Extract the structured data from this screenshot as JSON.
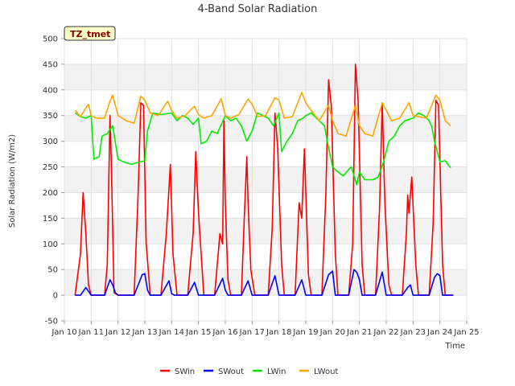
{
  "chart_data": {
    "type": "line",
    "title": "4-Band Solar Radiation",
    "xlabel": "Time",
    "ylabel": "Solar Radiation (W/m2)",
    "badge": "TZ_tmet",
    "xlim": [
      10,
      25
    ],
    "ylim": [
      -50,
      500
    ],
    "xticks": [
      {
        "v": 10,
        "label": "Jan 10"
      },
      {
        "v": 11,
        "label": "Jan 11"
      },
      {
        "v": 12,
        "label": "Jan 12"
      },
      {
        "v": 13,
        "label": "Jan 13"
      },
      {
        "v": 14,
        "label": "Jan 14"
      },
      {
        "v": 15,
        "label": "Jan 15"
      },
      {
        "v": 16,
        "label": "Jan 16"
      },
      {
        "v": 17,
        "label": "Jan 17"
      },
      {
        "v": 18,
        "label": "Jan 18"
      },
      {
        "v": 19,
        "label": "Jan 19"
      },
      {
        "v": 20,
        "label": "Jan 20"
      },
      {
        "v": 21,
        "label": "Jan 21"
      },
      {
        "v": 22,
        "label": "Jan 22"
      },
      {
        "v": 23,
        "label": "Jan 23"
      },
      {
        "v": 24,
        "label": "Jan 24"
      },
      {
        "v": 25,
        "label": "Jan 25"
      }
    ],
    "yticks": [
      -50,
      0,
      50,
      100,
      150,
      200,
      250,
      300,
      350,
      400,
      450,
      500
    ],
    "series": [
      {
        "name": "SWin",
        "color": "#ff0000",
        "x": [
          10.4,
          10.6,
          10.7,
          10.8,
          10.9,
          11.0,
          11.2,
          11.5,
          11.6,
          11.7,
          11.75,
          11.85,
          12.0,
          12.2,
          12.6,
          12.75,
          12.85,
          12.95,
          13.05,
          13.2,
          13.6,
          13.8,
          13.95,
          14.05,
          14.2,
          14.6,
          14.8,
          14.9,
          15.0,
          15.2,
          15.6,
          15.8,
          15.9,
          15.95,
          16.0,
          16.1,
          16.2,
          16.6,
          16.7,
          16.8,
          16.85,
          16.95,
          17.1,
          17.2,
          17.6,
          17.75,
          17.85,
          17.95,
          18.1,
          18.2,
          18.6,
          18.75,
          18.85,
          18.95,
          19.1,
          19.2,
          19.6,
          19.75,
          19.85,
          19.95,
          20.1,
          20.2,
          20.6,
          20.75,
          20.85,
          20.95,
          21.1,
          21.2,
          21.6,
          21.75,
          21.85,
          21.95,
          22.1,
          22.2,
          22.6,
          22.75,
          22.8,
          22.85,
          22.95,
          23.1,
          23.2,
          23.6,
          23.75,
          23.85,
          23.95,
          24.1,
          24.2,
          24.5
        ],
        "y": [
          0,
          80,
          200,
          120,
          20,
          0,
          0,
          0,
          60,
          350,
          260,
          5,
          0,
          0,
          0,
          200,
          375,
          370,
          100,
          0,
          0,
          120,
          255,
          80,
          0,
          0,
          120,
          280,
          160,
          0,
          0,
          120,
          100,
          340,
          180,
          30,
          0,
          0,
          140,
          270,
          180,
          50,
          0,
          0,
          0,
          130,
          355,
          290,
          60,
          0,
          0,
          180,
          150,
          285,
          40,
          0,
          0,
          200,
          420,
          370,
          80,
          0,
          0,
          100,
          450,
          380,
          60,
          0,
          0,
          170,
          375,
          180,
          20,
          0,
          0,
          120,
          195,
          160,
          230,
          60,
          0,
          0,
          140,
          380,
          370,
          60,
          0,
          0
        ]
      },
      {
        "name": "SWout",
        "color": "#0000ff",
        "x": [
          10.4,
          10.6,
          10.8,
          11.0,
          11.5,
          11.7,
          11.8,
          11.9,
          12.0,
          12.6,
          12.9,
          13.0,
          13.1,
          13.2,
          13.6,
          13.9,
          14.0,
          14.1,
          14.6,
          14.85,
          15.0,
          15.6,
          15.9,
          16.0,
          16.1,
          16.6,
          16.85,
          17.0,
          17.6,
          17.85,
          18.0,
          18.6,
          18.85,
          19.0,
          19.6,
          19.85,
          20.0,
          20.1,
          20.6,
          20.8,
          20.9,
          21.0,
          21.1,
          21.6,
          21.85,
          22.0,
          22.6,
          22.8,
          22.9,
          23.0,
          23.6,
          23.8,
          23.9,
          24.0,
          24.1,
          24.5
        ],
        "y": [
          0,
          0,
          15,
          0,
          0,
          30,
          20,
          5,
          0,
          0,
          40,
          42,
          10,
          0,
          0,
          28,
          3,
          0,
          0,
          25,
          0,
          0,
          33,
          10,
          0,
          0,
          28,
          0,
          0,
          38,
          0,
          0,
          30,
          0,
          0,
          40,
          47,
          0,
          0,
          50,
          45,
          30,
          0,
          0,
          45,
          0,
          0,
          15,
          20,
          0,
          0,
          35,
          42,
          38,
          0,
          0
        ]
      },
      {
        "name": "LWin",
        "color": "#00ee00",
        "x": [
          10.4,
          10.6,
          10.8,
          11.0,
          11.1,
          11.3,
          11.4,
          11.6,
          11.8,
          12.0,
          12.2,
          12.5,
          12.7,
          13.0,
          13.1,
          13.3,
          13.6,
          14.0,
          14.2,
          14.4,
          14.6,
          14.8,
          15.0,
          15.1,
          15.3,
          15.5,
          15.7,
          16.0,
          16.2,
          16.4,
          16.6,
          16.8,
          17.0,
          17.2,
          17.4,
          17.6,
          17.8,
          18.0,
          18.1,
          18.3,
          18.5,
          18.7,
          18.9,
          19.0,
          19.2,
          19.4,
          19.6,
          19.7,
          19.8,
          20.0,
          20.2,
          20.4,
          20.6,
          20.7,
          20.9,
          21.0,
          21.2,
          21.5,
          21.7,
          21.9,
          22.1,
          22.3,
          22.5,
          22.7,
          23.0,
          23.2,
          23.4,
          23.6,
          23.7,
          23.8,
          24.0,
          24.2,
          24.4
        ],
        "y": [
          355,
          348,
          345,
          350,
          265,
          270,
          310,
          315,
          330,
          265,
          260,
          255,
          258,
          262,
          320,
          355,
          352,
          355,
          340,
          350,
          345,
          333,
          345,
          295,
          300,
          320,
          315,
          350,
          340,
          345,
          330,
          300,
          320,
          355,
          350,
          345,
          330,
          355,
          280,
          300,
          315,
          340,
          345,
          350,
          355,
          345,
          335,
          330,
          300,
          250,
          240,
          232,
          245,
          250,
          215,
          240,
          225,
          225,
          230,
          260,
          300,
          310,
          330,
          340,
          345,
          355,
          350,
          340,
          328,
          300,
          260,
          262,
          248
        ]
      },
      {
        "name": "LWout",
        "color": "#ffa500",
        "x": [
          10.4,
          10.6,
          10.8,
          10.9,
          11.0,
          11.2,
          11.5,
          11.7,
          11.8,
          12.0,
          12.3,
          12.6,
          12.85,
          13.0,
          13.2,
          13.5,
          13.85,
          14.0,
          14.2,
          14.5,
          14.85,
          15.0,
          15.2,
          15.5,
          15.85,
          16.0,
          16.2,
          16.5,
          16.85,
          17.0,
          17.2,
          17.5,
          17.85,
          18.0,
          18.2,
          18.5,
          18.85,
          19.0,
          19.2,
          19.5,
          19.85,
          20.0,
          20.2,
          20.5,
          20.85,
          21.0,
          21.2,
          21.5,
          21.85,
          22.0,
          22.2,
          22.5,
          22.85,
          23.0,
          23.2,
          23.5,
          23.85,
          24.0,
          24.2,
          24.4
        ],
        "y": [
          360,
          348,
          365,
          372,
          350,
          345,
          345,
          378,
          390,
          350,
          340,
          335,
          388,
          380,
          355,
          350,
          378,
          360,
          345,
          350,
          368,
          352,
          345,
          350,
          383,
          350,
          345,
          352,
          382,
          372,
          348,
          350,
          385,
          380,
          345,
          348,
          395,
          375,
          360,
          340,
          370,
          340,
          315,
          310,
          370,
          330,
          315,
          310,
          375,
          360,
          340,
          345,
          375,
          350,
          348,
          345,
          390,
          380,
          340,
          330
        ]
      }
    ],
    "legend": {
      "placement": "bottom-center",
      "items": [
        "SWin",
        "SWout",
        "LWin",
        "LWout"
      ]
    }
  }
}
